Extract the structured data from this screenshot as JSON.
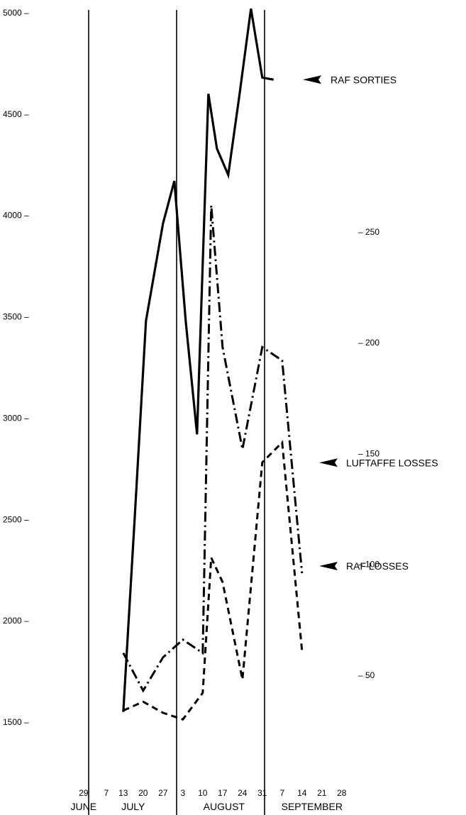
{
  "chart_data": {
    "type": "line",
    "title": "",
    "left_axis": {
      "ylim": [
        1500,
        5000
      ],
      "ticks": [
        {
          "value": 5000,
          "label": "5000 –"
        },
        {
          "value": 4500,
          "label": "4500 –"
        },
        {
          "value": 4000,
          "label": "4000 –"
        },
        {
          "value": 3500,
          "label": "3500 –"
        },
        {
          "value": 3000,
          "label": "3000 –"
        },
        {
          "value": 2500,
          "label": "2500 –"
        },
        {
          "value": 2000,
          "label": "2000 –"
        },
        {
          "value": 1500,
          "label": "1500 –"
        }
      ]
    },
    "right_axis": {
      "ylim": [
        0,
        300
      ],
      "ticks": [
        {
          "value": 250,
          "label": "– 250"
        },
        {
          "value": 200,
          "label": "– 200"
        },
        {
          "value": 150,
          "label": "– 150"
        },
        {
          "value": 100,
          "label": "– 100"
        },
        {
          "value": 50,
          "label": "– 50"
        }
      ]
    },
    "x_axis": {
      "ticks": [
        {
          "day": -1,
          "label": "29"
        },
        {
          "day": 7,
          "label": "7"
        },
        {
          "day": 13,
          "label": "13"
        },
        {
          "day": 20,
          "label": "20"
        },
        {
          "day": 27,
          "label": "27"
        },
        {
          "day": 34,
          "label": "3"
        },
        {
          "day": 41,
          "label": "10"
        },
        {
          "day": 48,
          "label": "17"
        },
        {
          "day": 55,
          "label": "24"
        },
        {
          "day": 62,
          "label": "31"
        },
        {
          "day": 69,
          "label": "7"
        },
        {
          "day": 76,
          "label": "14"
        },
        {
          "day": 83,
          "label": "21"
        },
        {
          "day": 90,
          "label": "28"
        }
      ],
      "months": [
        {
          "day": -1,
          "label": "JUNE"
        },
        {
          "day": 16.5,
          "label": "JULY"
        },
        {
          "day": 48.5,
          "label": "AUGUST"
        },
        {
          "day": 79.5,
          "label": "SEPTEMBER"
        }
      ],
      "month_boundaries": [
        0.8,
        31.8,
        62.8
      ]
    },
    "series": [
      {
        "name": "RAF SORTIES",
        "axis": "left",
        "style": "solid",
        "label_y": 4670,
        "x": [
          13,
          17,
          21,
          27,
          31,
          35,
          39,
          43,
          46,
          50,
          54,
          58,
          62,
          66
        ],
        "values": [
          1550,
          2500,
          3480,
          3960,
          4170,
          3480,
          2920,
          4600,
          4330,
          4200,
          4600,
          5020,
          4680,
          4670
        ]
      },
      {
        "name": "LUFTAFFE LOSSES",
        "axis": "right",
        "style": "dashdot",
        "label_y": 2780,
        "x": [
          13,
          20,
          27,
          34,
          41,
          44,
          48,
          55,
          62,
          69,
          76
        ],
        "values": [
          60,
          43,
          58,
          66,
          60,
          262,
          198,
          152,
          198,
          192,
          96
        ]
      },
      {
        "name": "RAF LOSSES",
        "axis": "right",
        "style": "dashed",
        "label_y": 2270,
        "x": [
          13,
          20,
          27,
          34,
          41,
          44,
          48,
          55,
          62,
          69,
          76
        ],
        "values": [
          34,
          38,
          33,
          30,
          42,
          103,
          92,
          48,
          146,
          155,
          61
        ]
      }
    ]
  }
}
